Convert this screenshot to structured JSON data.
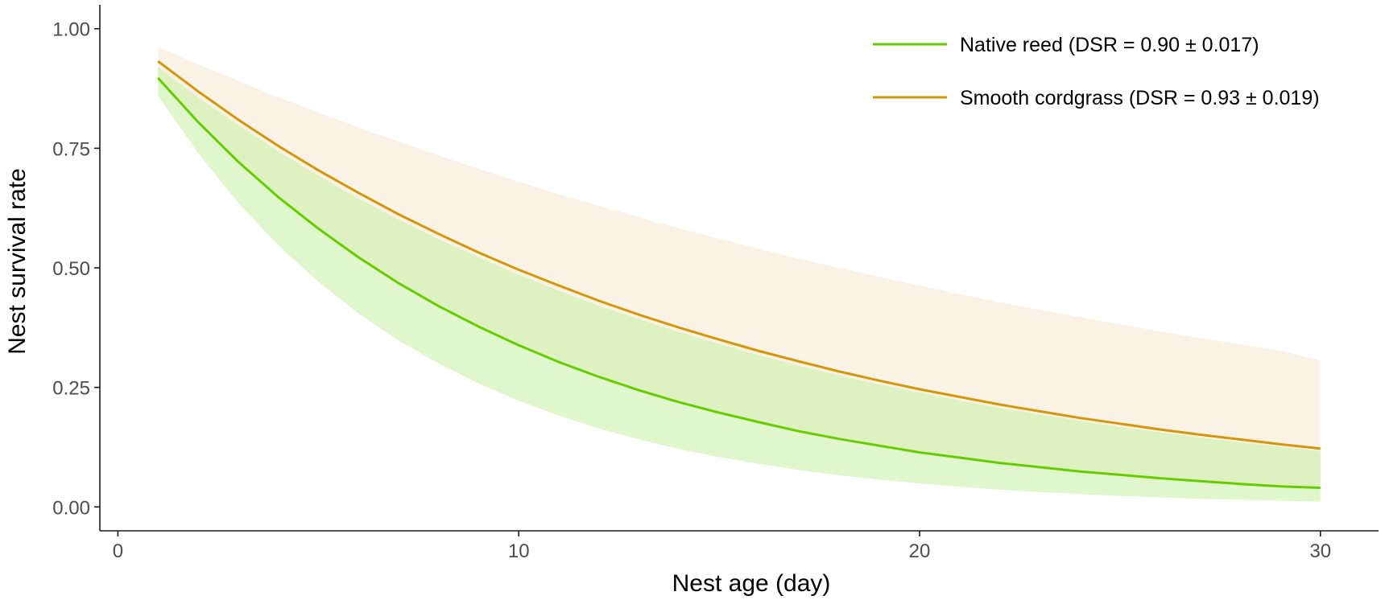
{
  "chart_data": {
    "type": "line",
    "title": "",
    "xlabel": "Nest age (day)",
    "ylabel": "Nest survival rate",
    "xlim": [
      -0.45,
      31.45
    ],
    "ylim": [
      -0.05,
      1.05
    ],
    "xticks": [
      {
        "value": 0,
        "label": "0"
      },
      {
        "value": 10,
        "label": "10"
      },
      {
        "value": 20,
        "label": "20"
      },
      {
        "value": 30,
        "label": "30"
      }
    ],
    "yticks": [
      {
        "value": 0,
        "label": "0.00"
      },
      {
        "value": 0.25,
        "label": "0.25"
      },
      {
        "value": 0.5,
        "label": "0.50"
      },
      {
        "value": 0.75,
        "label": "0.75"
      },
      {
        "value": 1,
        "label": "1.00"
      }
    ],
    "grid": false,
    "legend_position": "top-right",
    "x": [
      1,
      2,
      3,
      4,
      5,
      6,
      7,
      8,
      9,
      10,
      11,
      12,
      13,
      14,
      15,
      16,
      17,
      18,
      19,
      20,
      21,
      22,
      23,
      24,
      25,
      26,
      27,
      28,
      29,
      30
    ],
    "series": [
      {
        "name": "Smooth cordgrass (DSR = 0.93 ± 0.019)",
        "color": "#D4960A",
        "band_color": "#F5E9D0",
        "values": [
          0.932,
          0.869,
          0.81,
          0.755,
          0.704,
          0.657,
          0.612,
          0.571,
          0.532,
          0.496,
          0.463,
          0.431,
          0.402,
          0.375,
          0.35,
          0.326,
          0.304,
          0.283,
          0.264,
          0.246,
          0.23,
          0.214,
          0.2,
          0.186,
          0.174,
          0.162,
          0.151,
          0.141,
          0.131,
          0.122
        ],
        "lower": [
          0.896,
          0.804,
          0.72,
          0.646,
          0.579,
          0.519,
          0.465,
          0.417,
          0.374,
          0.335,
          0.3,
          0.269,
          0.241,
          0.216,
          0.194,
          0.174,
          0.156,
          0.14,
          0.125,
          0.112,
          0.101,
          0.09,
          0.081,
          0.073,
          0.065,
          0.058,
          0.052,
          0.047,
          0.042,
          0.038
        ],
        "upper": [
          0.962,
          0.926,
          0.891,
          0.857,
          0.825,
          0.794,
          0.764,
          0.735,
          0.707,
          0.68,
          0.654,
          0.63,
          0.606,
          0.583,
          0.561,
          0.54,
          0.519,
          0.5,
          0.481,
          0.463,
          0.445,
          0.428,
          0.412,
          0.397,
          0.382,
          0.367,
          0.353,
          0.34,
          0.327,
          0.306
        ]
      },
      {
        "name": "Native reed (DSR = 0.90 ± 0.017)",
        "color": "#66CC00",
        "band_color": "#C6EEA4",
        "values": [
          0.897,
          0.805,
          0.722,
          0.648,
          0.582,
          0.522,
          0.468,
          0.42,
          0.377,
          0.338,
          0.303,
          0.272,
          0.244,
          0.219,
          0.197,
          0.177,
          0.158,
          0.142,
          0.128,
          0.114,
          0.103,
          0.092,
          0.083,
          0.074,
          0.067,
          0.06,
          0.054,
          0.048,
          0.043,
          0.04
        ],
        "lower": [
          0.86,
          0.74,
          0.636,
          0.547,
          0.471,
          0.405,
          0.348,
          0.3,
          0.258,
          0.222,
          0.191,
          0.164,
          0.141,
          0.121,
          0.104,
          0.09,
          0.077,
          0.066,
          0.057,
          0.049,
          0.042,
          0.036,
          0.031,
          0.027,
          0.023,
          0.02,
          0.017,
          0.015,
          0.013,
          0.011
        ],
        "upper": [
          0.92,
          0.857,
          0.799,
          0.744,
          0.693,
          0.645,
          0.601,
          0.56,
          0.522,
          0.486,
          0.452,
          0.421,
          0.393,
          0.366,
          0.341,
          0.317,
          0.295,
          0.275,
          0.256,
          0.239,
          0.222,
          0.207,
          0.193,
          0.18,
          0.167,
          0.156,
          0.145,
          0.135,
          0.126,
          0.117
        ]
      }
    ],
    "legend": [
      {
        "label": "Native reed (DSR = 0.90 ± 0.017)",
        "color": "#66CC00"
      },
      {
        "label": "Smooth cordgrass (DSR = 0.93 ± 0.019)",
        "color": "#D4960A"
      }
    ]
  }
}
